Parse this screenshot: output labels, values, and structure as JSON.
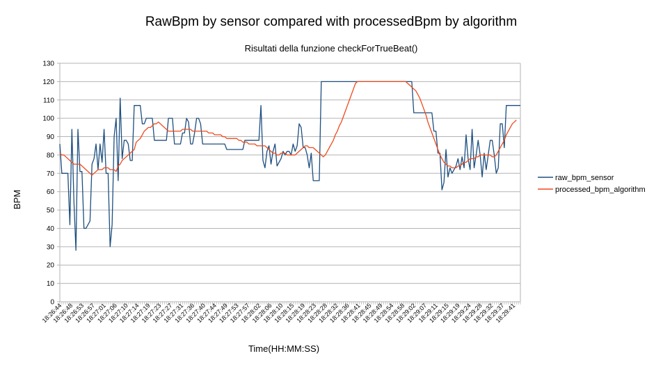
{
  "chart_data": {
    "type": "line",
    "title": "RawBpm by sensor compared with processedBpm by algorithm",
    "subtitle": "Risultati della funzione checkForTrueBeat()",
    "xlabel": "Time(HH:MM:SS)",
    "ylabel": "BPM",
    "ylim": [
      0,
      130
    ],
    "y_ticks": [
      0,
      10,
      20,
      30,
      40,
      50,
      60,
      70,
      80,
      90,
      100,
      110,
      120,
      130
    ],
    "grid": "horizontal",
    "legend_position": "right",
    "x_tick_labels": [
      "18:26:44",
      "18:26:48",
      "18:26:53",
      "18:26:57",
      "18:27:01",
      "18:27:06",
      "18:27:10",
      "18:27:14",
      "18:27:19",
      "18:27:23",
      "18:27:27",
      "18:27:31",
      "18:27:36",
      "18:27:40",
      "18:27:44",
      "18:27:49",
      "18:27:53",
      "18:27:57",
      "18:28:02",
      "18:28:06",
      "18:28:10",
      "18:28:15",
      "18:28:19",
      "18:28:23",
      "18:28:28",
      "18:28:32",
      "18:28:36",
      "18:28:41",
      "18:28:45",
      "18:28:49",
      "18:28:54",
      "18:28:58",
      "18:29:02",
      "18:29:07",
      "18:29:11",
      "18:29:15",
      "18:29:19",
      "18:29:24",
      "18:29:28",
      "18:29:32",
      "18:29:37",
      "18:29:41"
    ],
    "series": [
      {
        "name": "raw_bpm_sensor",
        "color": "#1c4e80",
        "values": [
          86,
          70,
          70,
          70,
          70,
          42,
          94,
          55,
          28,
          94,
          71,
          71,
          40,
          40,
          42,
          44,
          75,
          78,
          86,
          72,
          86,
          76,
          94,
          70,
          70,
          30,
          42,
          90,
          100,
          66,
          111,
          78,
          88,
          88,
          86,
          77,
          77,
          107,
          107,
          107,
          107,
          97,
          97,
          100,
          100,
          100,
          100,
          88,
          88,
          88,
          88,
          88,
          88,
          88,
          100,
          100,
          100,
          86,
          86,
          86,
          86,
          92,
          92,
          100,
          98,
          86,
          86,
          92,
          100,
          100,
          97,
          86,
          86,
          86,
          86,
          86,
          86,
          86,
          86,
          86,
          86,
          86,
          86,
          83,
          83,
          83,
          83,
          83,
          83,
          83,
          83,
          83,
          88,
          88,
          88,
          88,
          88,
          88,
          88,
          88,
          107,
          77,
          73,
          82,
          85,
          75,
          82,
          86,
          74,
          76,
          78,
          82,
          80,
          82,
          82,
          80,
          86,
          82,
          85,
          97,
          95,
          84,
          84,
          80,
          73,
          81,
          66,
          66,
          66,
          66,
          120,
          120,
          120,
          120,
          120,
          120,
          120,
          120,
          120,
          120,
          120,
          120,
          120,
          120,
          120,
          120,
          120,
          120,
          120,
          120,
          120,
          120,
          120,
          120,
          120,
          120,
          120,
          120,
          120,
          120,
          120,
          120,
          120,
          120,
          120,
          120,
          120,
          120,
          120,
          120,
          120,
          120,
          120,
          120,
          120,
          120,
          103,
          103,
          103,
          103,
          103,
          103,
          103,
          103,
          103,
          103,
          93,
          93,
          81,
          81,
          61,
          65,
          83,
          68,
          73,
          70,
          72,
          74,
          78,
          72,
          79,
          73,
          91,
          78,
          72,
          94,
          73,
          80,
          88,
          80,
          68,
          81,
          72,
          80,
          88,
          88,
          80,
          70,
          73,
          97,
          97,
          84,
          107,
          107,
          107,
          107,
          107,
          107,
          107,
          107
        ]
      },
      {
        "name": "processed_bpm_algorithm",
        "color": "#ee4a1b",
        "values": [
          81,
          80,
          80,
          79,
          78,
          77,
          76,
          75,
          75,
          75,
          75,
          74,
          73,
          72,
          71,
          70,
          69,
          70,
          71,
          72,
          72,
          72,
          73,
          73,
          73,
          72,
          72,
          72,
          71,
          74,
          75,
          77,
          78,
          79,
          80,
          81,
          82,
          83,
          87,
          88,
          89,
          91,
          93,
          94,
          95,
          95,
          96,
          97,
          97,
          98,
          97,
          96,
          95,
          94,
          93,
          93,
          93,
          93,
          93,
          93,
          93,
          94,
          94,
          94,
          94,
          94,
          93,
          93,
          93,
          93,
          93,
          93,
          93,
          93,
          92,
          92,
          92,
          91,
          91,
          91,
          91,
          90,
          90,
          89,
          89,
          89,
          89,
          89,
          89,
          88,
          88,
          87,
          87,
          87,
          86,
          86,
          86,
          86,
          85,
          85,
          85,
          85,
          85,
          84,
          83,
          82,
          81,
          81,
          80,
          80,
          81,
          81,
          81,
          80,
          80,
          80,
          80,
          80,
          81,
          82,
          83,
          84,
          85,
          85,
          84,
          84,
          84,
          83,
          82,
          81,
          80,
          79,
          80,
          82,
          84,
          86,
          88,
          91,
          93,
          96,
          98,
          101,
          104,
          107,
          110,
          113,
          116,
          119,
          120,
          120,
          120,
          120,
          120,
          120,
          120,
          120,
          120,
          120,
          120,
          120,
          120,
          120,
          120,
          120,
          120,
          120,
          120,
          120,
          120,
          120,
          120,
          120,
          120,
          119,
          118,
          117,
          116,
          115,
          113,
          111,
          108,
          105,
          102,
          98,
          95,
          92,
          89,
          86,
          83,
          80,
          78,
          76,
          75,
          74,
          74,
          73,
          73,
          73,
          74,
          74,
          75,
          76,
          76,
          77,
          78,
          78,
          78,
          79,
          79,
          80,
          80,
          80,
          80,
          80,
          80,
          79,
          79,
          80,
          82,
          84,
          86,
          88,
          91,
          93,
          95,
          97,
          98,
          99
        ]
      }
    ]
  }
}
